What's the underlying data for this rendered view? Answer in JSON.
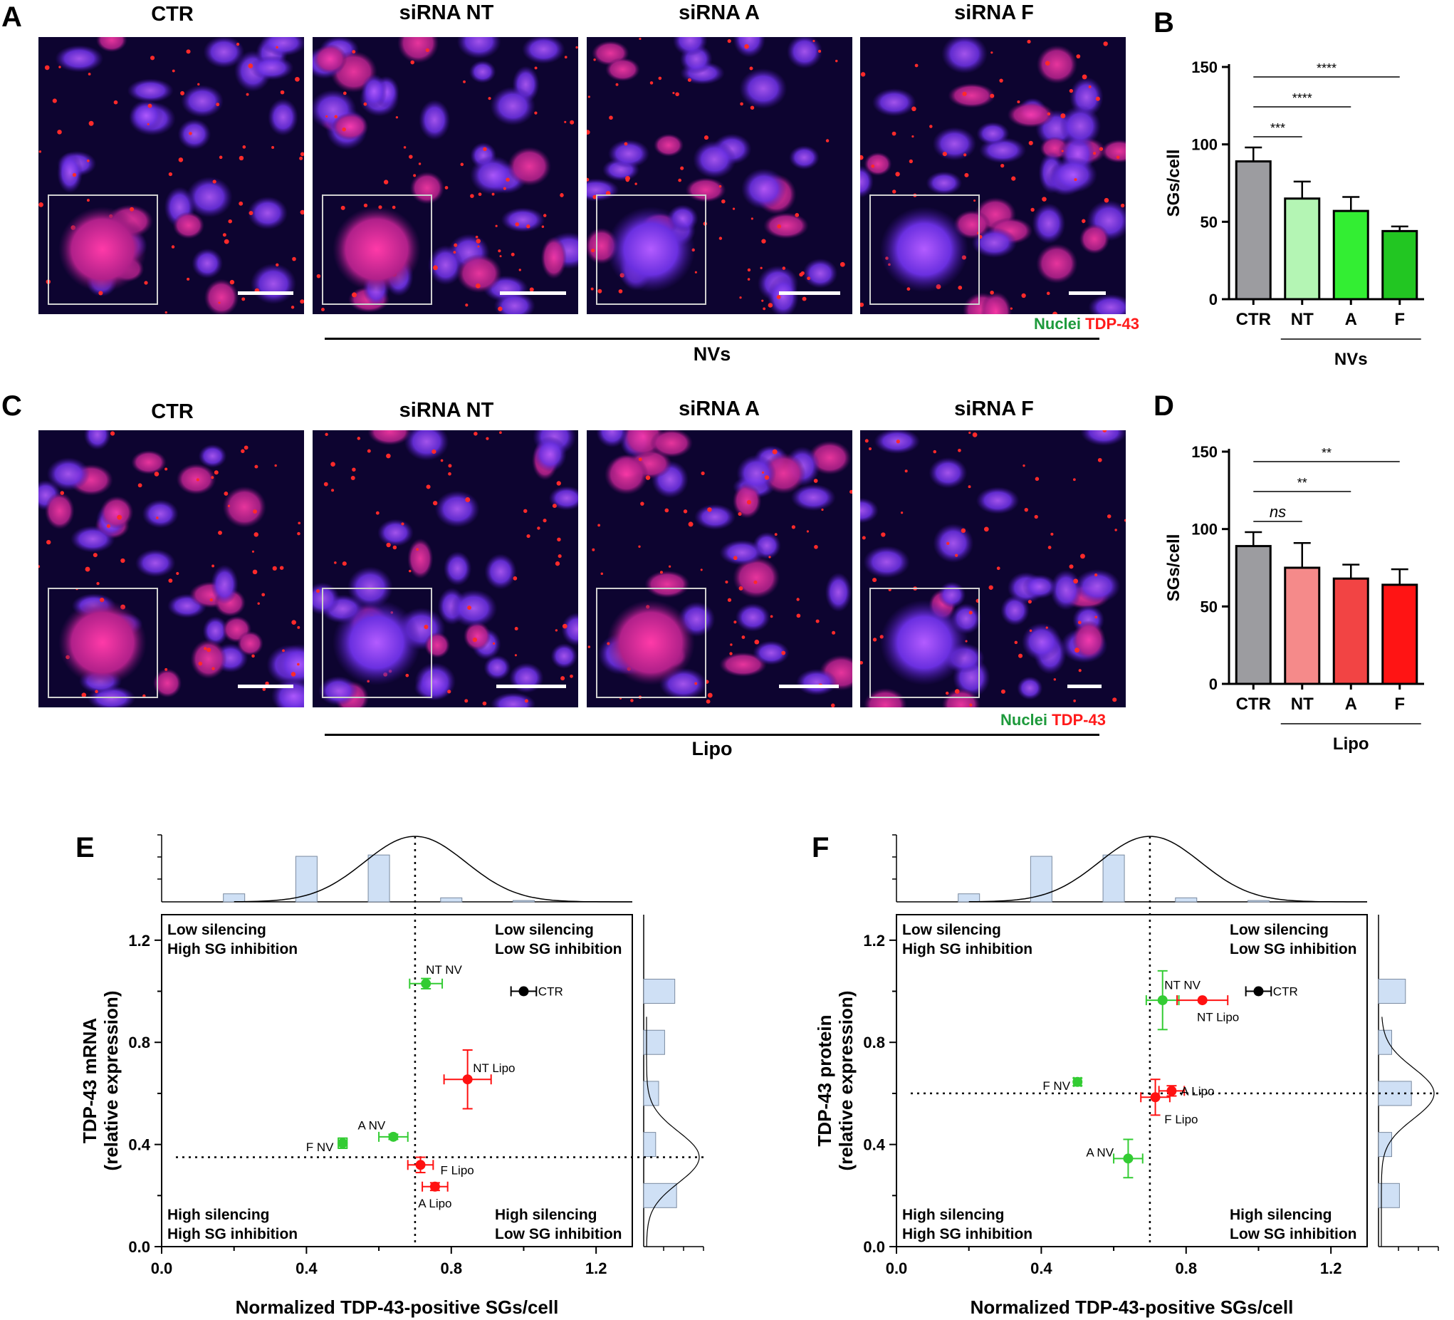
{
  "panels": {
    "A": "A",
    "B": "B",
    "C": "C",
    "D": "D",
    "E": "E",
    "F": "F"
  },
  "image_rows": [
    {
      "id": "nv",
      "labels": [
        "CTR",
        "siRNA NT",
        "siRNA A",
        "siRNA F"
      ],
      "legend": {
        "nuclei": "Nuclei",
        "tdp": "TDP-43"
      },
      "group": "NVs"
    },
    {
      "id": "lipo",
      "labels": [
        "CTR",
        "siRNA NT",
        "siRNA A",
        "siRNA F"
      ],
      "legend": {
        "nuclei": "Nuclei",
        "tdp": "TDP-43"
      },
      "group": "Lipo"
    }
  ],
  "chart_data": [
    {
      "id": "B",
      "type": "bar",
      "categories": [
        "CTR",
        "NT",
        "A",
        "F"
      ],
      "values": [
        89,
        65,
        57,
        44
      ],
      "errors": [
        9,
        11,
        9,
        3
      ],
      "colors": [
        "#9c9ca0",
        "#b4f5b4",
        "#33ee33",
        "#22c622"
      ],
      "ylabel": "SGs/cell",
      "ylim": [
        0,
        150
      ],
      "yticks": [
        0,
        50,
        100,
        150
      ],
      "group_label": "NVs",
      "significance": [
        {
          "from": "CTR",
          "to": "NT",
          "label": "***"
        },
        {
          "from": "CTR",
          "to": "A",
          "label": "****"
        },
        {
          "from": "CTR",
          "to": "F",
          "label": "****"
        }
      ]
    },
    {
      "id": "D",
      "type": "bar",
      "categories": [
        "CTR",
        "NT",
        "A",
        "F"
      ],
      "values": [
        89,
        75,
        68,
        64
      ],
      "errors": [
        9,
        16,
        9,
        10
      ],
      "colors": [
        "#9c9ca0",
        "#f58a8a",
        "#f24444",
        "#ff1414"
      ],
      "ylabel": "SGs/cell",
      "ylim": [
        0,
        150
      ],
      "yticks": [
        0,
        50,
        100,
        150
      ],
      "group_label": "Lipo",
      "significance": [
        {
          "from": "CTR",
          "to": "NT",
          "label": "ns"
        },
        {
          "from": "CTR",
          "to": "A",
          "label": "**"
        },
        {
          "from": "CTR",
          "to": "F",
          "label": "**"
        }
      ]
    },
    {
      "id": "E",
      "type": "scatter",
      "xlabel": "Normalized TDP-43-positive SGs/cell",
      "ylabel": [
        "TDP-43 mRNA",
        "(relative expression)"
      ],
      "xlim": [
        0,
        1.3
      ],
      "ylim": [
        0,
        1.3
      ],
      "xticks": [
        "0.0",
        "0.4",
        "0.8",
        "1.2"
      ],
      "yticks": [
        "0.0",
        "0.4",
        "0.8",
        "1.2"
      ],
      "vline": 0.7,
      "hline": 0.35,
      "quadrants": {
        "tl": [
          "Low silencing",
          "High SG inhibition"
        ],
        "tr": [
          "Low silencing",
          "Low SG inhibition"
        ],
        "bl": [
          "High silencing",
          "High SG inhibition"
        ],
        "br": [
          "High silencing",
          "Low SG inhibition"
        ]
      },
      "points": [
        {
          "label": "CTR",
          "x": 1.0,
          "y": 1.0,
          "xerr": 0.035,
          "yerr": 0.0,
          "color": "#000000",
          "lx": 1.04,
          "ly": 1.0,
          "anchor": "start"
        },
        {
          "label": "NT NV",
          "x": 0.73,
          "y": 1.03,
          "xerr": 0.045,
          "yerr": 0.02,
          "color": "#33cc33",
          "lx": 0.73,
          "ly": 1.085,
          "anchor": "start"
        },
        {
          "label": "NT Lipo",
          "x": 0.845,
          "y": 0.655,
          "xerr": 0.065,
          "yerr": 0.115,
          "color": "#ff1111",
          "lx": 0.86,
          "ly": 0.7,
          "anchor": "start"
        },
        {
          "label": "A NV",
          "x": 0.64,
          "y": 0.43,
          "xerr": 0.04,
          "yerr": 0.01,
          "color": "#33cc33",
          "lx": 0.58,
          "ly": 0.475,
          "anchor": "middle"
        },
        {
          "label": "F NV",
          "x": 0.5,
          "y": 0.405,
          "xerr": 0.012,
          "yerr": 0.02,
          "color": "#33cc33",
          "lx": 0.475,
          "ly": 0.39,
          "anchor": "end"
        },
        {
          "label": "F Lipo",
          "x": 0.715,
          "y": 0.32,
          "xerr": 0.035,
          "yerr": 0.03,
          "color": "#ff1111",
          "lx": 0.77,
          "ly": 0.3,
          "anchor": "start"
        },
        {
          "label": "A Lipo",
          "x": 0.755,
          "y": 0.235,
          "xerr": 0.035,
          "yerr": 0.015,
          "color": "#ff1111",
          "lx": 0.755,
          "ly": 0.17,
          "anchor": "middle"
        }
      ],
      "top_hist": [
        0.12,
        0.0,
        0.68,
        0.0,
        0.7,
        0.0,
        0.06,
        0.0,
        0.02
      ],
      "right_hist": [
        0.52,
        0.0,
        0.35,
        0.0,
        0.25,
        0.0,
        0.2,
        0.0,
        0.55
      ]
    },
    {
      "id": "F",
      "type": "scatter",
      "xlabel": "Normalized TDP-43-positive SGs/cell",
      "ylabel": [
        "TDP-43 protein",
        "(relative expression)"
      ],
      "xlim": [
        0,
        1.3
      ],
      "ylim": [
        0,
        1.3
      ],
      "xticks": [
        "0.0",
        "0.4",
        "0.8",
        "1.2"
      ],
      "yticks": [
        "0.0",
        "0.4",
        "0.8",
        "1.2"
      ],
      "vline": 0.7,
      "hline": 0.6,
      "quadrants": {
        "tl": [
          "Low silencing",
          "High SG inhibition"
        ],
        "tr": [
          "Low silencing",
          "Low SG inhibition"
        ],
        "bl": [
          "High silencing",
          "High SG inhibition"
        ],
        "br": [
          "High silencing",
          "Low SG inhibition"
        ]
      },
      "points": [
        {
          "label": "CTR",
          "x": 1.0,
          "y": 1.0,
          "xerr": 0.035,
          "yerr": 0.0,
          "color": "#000000",
          "lx": 1.04,
          "ly": 1.0,
          "anchor": "start"
        },
        {
          "label": "NT NV",
          "x": 0.735,
          "y": 0.965,
          "xerr": 0.045,
          "yerr": 0.115,
          "color": "#33cc33",
          "lx": 0.74,
          "ly": 1.025,
          "anchor": "start"
        },
        {
          "label": "NT Lipo",
          "x": 0.845,
          "y": 0.965,
          "xerr": 0.07,
          "yerr": 0.0,
          "color": "#ff1111",
          "lx": 0.83,
          "ly": 0.9,
          "anchor": "start"
        },
        {
          "label": "F NV",
          "x": 0.5,
          "y": 0.645,
          "xerr": 0.01,
          "yerr": 0.015,
          "color": "#33cc33",
          "lx": 0.48,
          "ly": 0.63,
          "anchor": "end"
        },
        {
          "label": "A Lipo",
          "x": 0.76,
          "y": 0.61,
          "xerr": 0.035,
          "yerr": 0.02,
          "color": "#ff1111",
          "lx": 0.785,
          "ly": 0.61,
          "anchor": "start"
        },
        {
          "label": "F Lipo",
          "x": 0.715,
          "y": 0.585,
          "xerr": 0.04,
          "yerr": 0.07,
          "color": "#ff1111",
          "lx": 0.74,
          "ly": 0.5,
          "anchor": "start"
        },
        {
          "label": "A NV",
          "x": 0.64,
          "y": 0.345,
          "xerr": 0.04,
          "yerr": 0.075,
          "color": "#33cc33",
          "lx": 0.6,
          "ly": 0.37,
          "anchor": "end"
        }
      ],
      "top_hist": [
        0.12,
        0.0,
        0.68,
        0.0,
        0.7,
        0.0,
        0.06,
        0.0,
        0.02
      ],
      "right_hist": [
        0.45,
        0.0,
        0.22,
        0.0,
        0.55,
        0.0,
        0.22,
        0.0,
        0.35
      ]
    }
  ]
}
